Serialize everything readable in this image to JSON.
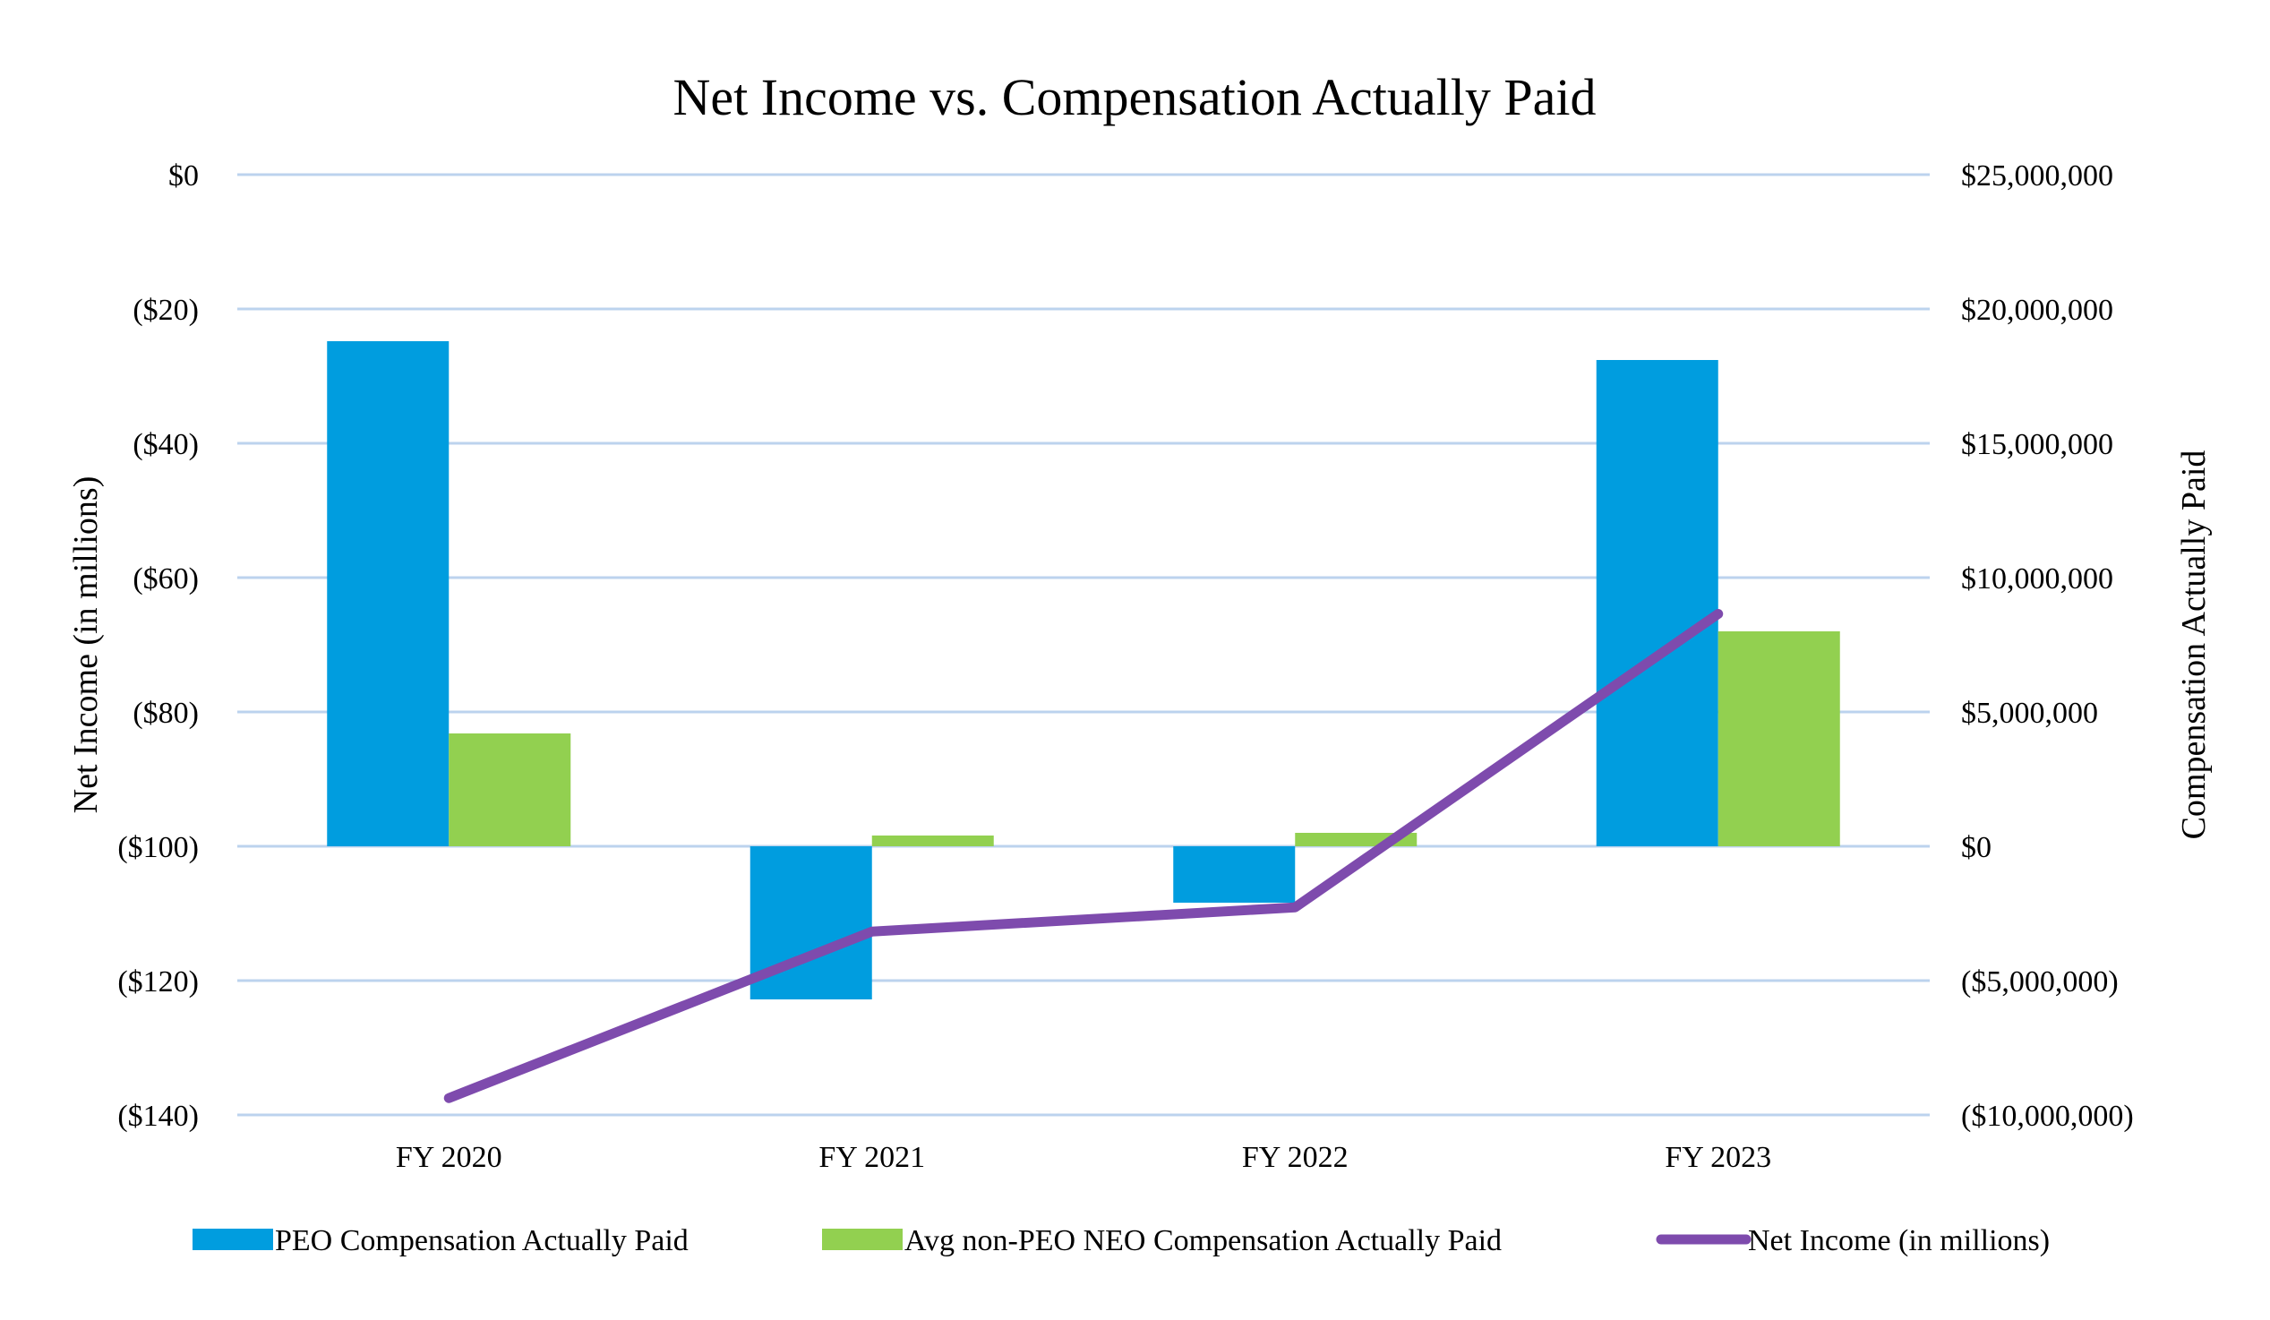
{
  "chart_data": {
    "type": "bar",
    "title": "Net Income vs. Compensation Actually Paid",
    "categories": [
      "FY 2020",
      "FY 2021",
      "FY 2022",
      "FY 2023"
    ],
    "series": [
      {
        "name": "PEO Compensation Actually Paid",
        "kind": "bar",
        "axis": "right",
        "color": "#009ddf",
        "values": [
          18800000,
          -5700000,
          -2100000,
          18100000
        ]
      },
      {
        "name": "Avg non-PEO NEO Compensation Actually Paid",
        "kind": "bar",
        "axis": "right",
        "color": "#92d050",
        "values": [
          4200000,
          400000,
          500000,
          8000000
        ]
      },
      {
        "name": "Net Income (in millions)",
        "kind": "line",
        "axis": "left",
        "color": "#7e4bad",
        "values": [
          -137.5,
          -112.7,
          -109.1,
          -65.4
        ]
      }
    ],
    "left_axis": {
      "label": "Net Income  (in millions)",
      "range": [
        -140,
        0
      ],
      "ticks": [
        0,
        -20,
        -40,
        -60,
        -80,
        -100,
        -120,
        -140
      ],
      "tick_labels": [
        "$0",
        "($20)",
        "($40)",
        "($60)",
        "($80)",
        "($100)",
        "($120)",
        "($140)"
      ]
    },
    "right_axis": {
      "label": "Compensation  Actually Paid",
      "range": [
        -10000000,
        25000000
      ],
      "ticks": [
        25000000,
        20000000,
        15000000,
        10000000,
        5000000,
        0,
        -5000000,
        -10000000
      ],
      "tick_labels": [
        "$25,000,000",
        "$20,000,000",
        "$15,000,000",
        "$10,000,000",
        "$5,000,000",
        "$0",
        "($5,000,000)",
        "($10,000,000)"
      ]
    },
    "grid": true,
    "legend_position": "bottom"
  }
}
